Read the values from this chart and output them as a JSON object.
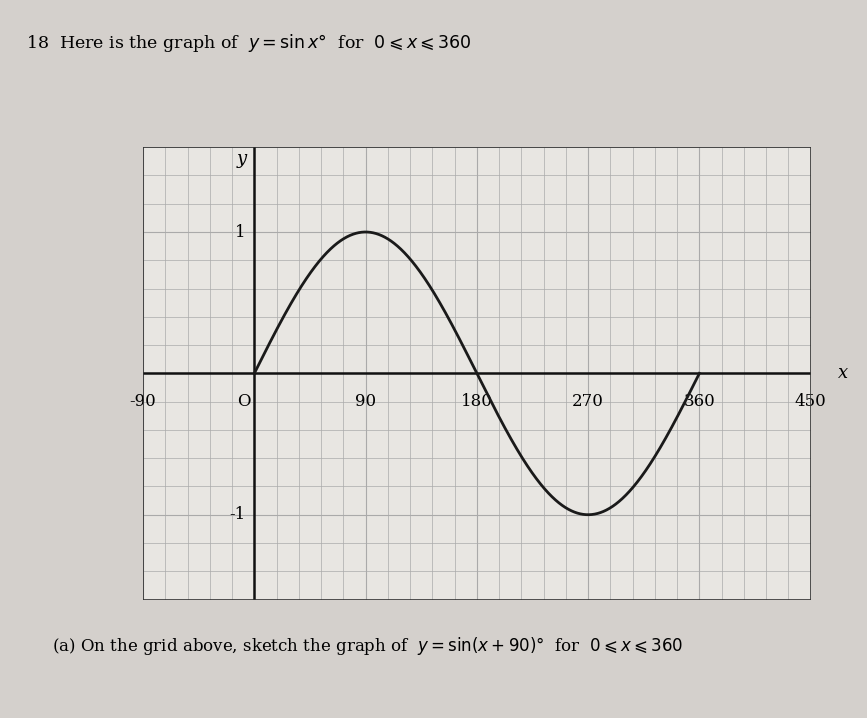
{
  "x_min": -90,
  "x_max": 450,
  "y_min": -1.6,
  "y_max": 1.6,
  "x_ticks": [
    -90,
    0,
    90,
    180,
    270,
    360,
    450
  ],
  "x_tick_labels": [
    "-90",
    "O",
    "90",
    "180",
    "270",
    "360",
    "450"
  ],
  "y_ticks": [
    -1,
    1
  ],
  "y_tick_labels": [
    "-1",
    "1"
  ],
  "grid_color": "#aaaaaa",
  "grid_linewidth_minor": 0.5,
  "grid_linewidth_major": 0.8,
  "curve_color": "#1a1a1a",
  "axis_color": "#111111",
  "background_color": "#d4d0cc",
  "plot_bg_color": "#e8e6e2",
  "curve_linewidth": 2.0,
  "grid_minor_x_step": 18,
  "grid_minor_y_step": 0.2,
  "grid_major_x_step": 90,
  "title_number": "18",
  "title_text": "Here is the graph of",
  "title_math": "y = sin x°",
  "title_range": "for  0 ≤ x ≤ 360",
  "subtitle": "(a) On the grid above, sketch the graph of  y = sin(x + 90)°  for  0 ≤ x ≤ 360",
  "xlabel": "x",
  "ylabel": "y",
  "origin_label": "O",
  "axis_linewidth": 1.8,
  "border_linewidth": 1.2
}
